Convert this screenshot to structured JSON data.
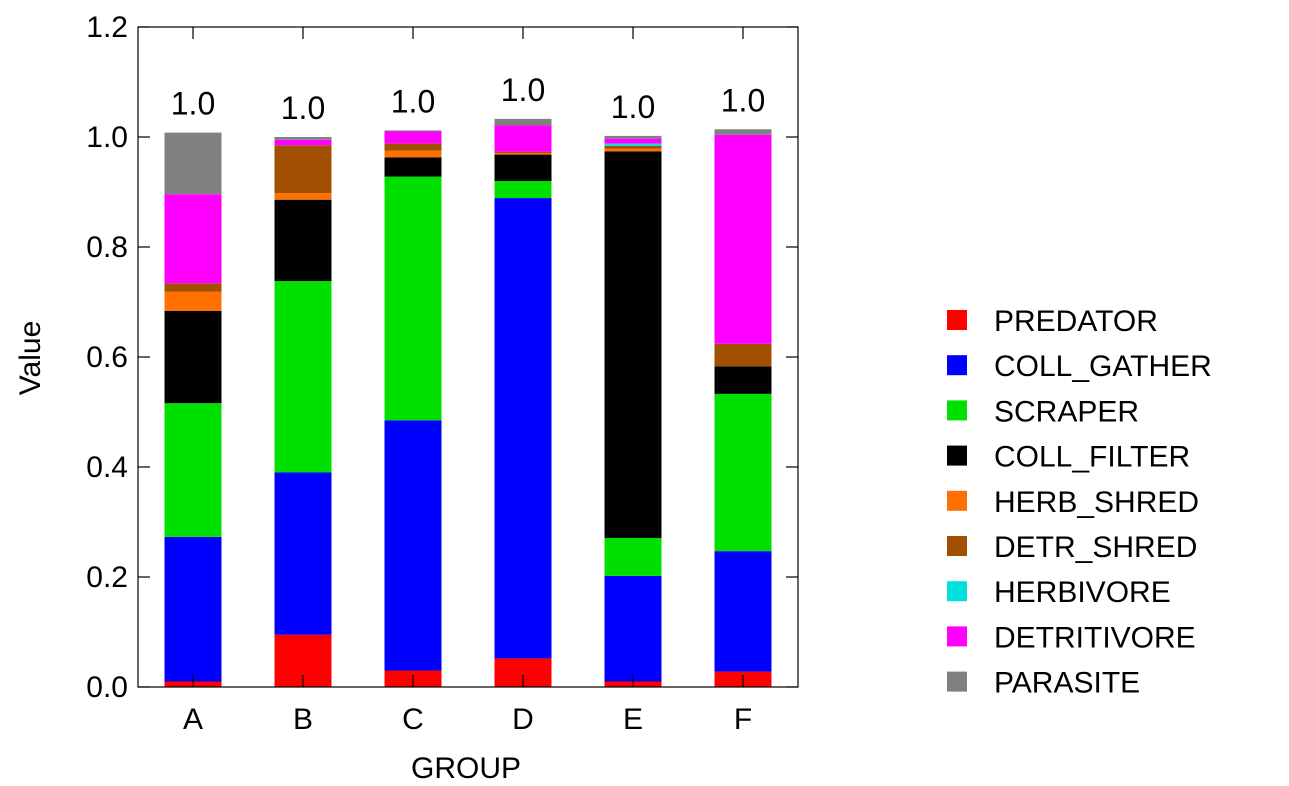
{
  "chart_data": {
    "type": "bar",
    "stacked": true,
    "xlabel": "GROUP",
    "ylabel": "Value",
    "ylim": [
      0,
      1.2
    ],
    "yticks": [
      "0.0",
      "0.2",
      "0.4",
      "0.6",
      "0.8",
      "1.0",
      "1.2"
    ],
    "categories": [
      "A",
      "B",
      "C",
      "D",
      "E",
      "F"
    ],
    "totals": [
      "1.0",
      "1.0",
      "1.0",
      "1.0",
      "1.0",
      "1.0"
    ],
    "legend_position": "right",
    "grid": false,
    "series": [
      {
        "name": "PREDATOR",
        "color": "#ff0000",
        "values": [
          0.01,
          0.095,
          0.03,
          0.052,
          0.01,
          0.028
        ]
      },
      {
        "name": "COLL_GATHER",
        "color": "#0000ff",
        "values": [
          0.263,
          0.295,
          0.455,
          0.837,
          0.192,
          0.219
        ]
      },
      {
        "name": "SCRAPER",
        "color": "#00e000",
        "values": [
          0.243,
          0.348,
          0.443,
          0.031,
          0.069,
          0.286
        ]
      },
      {
        "name": "COLL_FILTER",
        "color": "#000000",
        "values": [
          0.168,
          0.148,
          0.035,
          0.048,
          0.703,
          0.05
        ]
      },
      {
        "name": "HERB_SHRED",
        "color": "#ff7000",
        "values": [
          0.035,
          0.012,
          0.012,
          0.003,
          0.005,
          0.0
        ]
      },
      {
        "name": "DETR_SHRED",
        "color": "#a05000",
        "values": [
          0.015,
          0.087,
          0.013,
          0.002,
          0.005,
          0.041
        ]
      },
      {
        "name": "HERBIVORE",
        "color": "#00e0e0",
        "values": [
          0.0,
          0.0,
          0.0,
          0.0,
          0.004,
          0.0
        ]
      },
      {
        "name": "DETRITIVORE",
        "color": "#ff00ff",
        "values": [
          0.162,
          0.01,
          0.022,
          0.048,
          0.009,
          0.38
        ]
      },
      {
        "name": "PARASITE",
        "color": "#808080",
        "values": [
          0.112,
          0.005,
          0.002,
          0.012,
          0.005,
          0.01
        ]
      }
    ]
  }
}
